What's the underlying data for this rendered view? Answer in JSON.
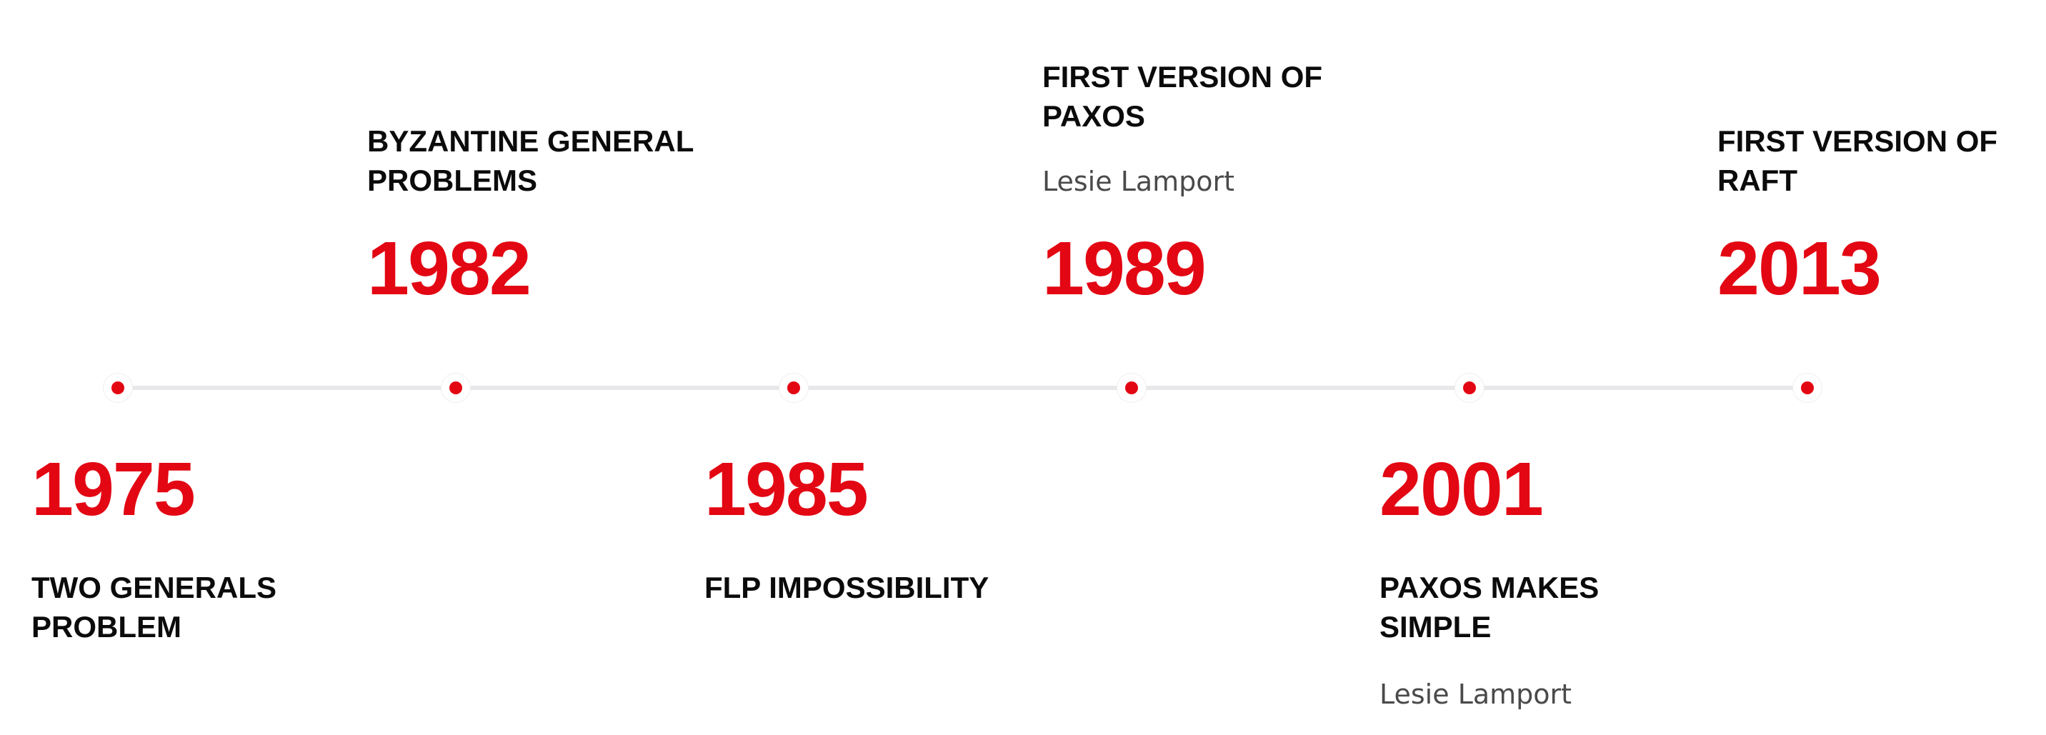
{
  "accent_color": "#e30613",
  "line_color": "#e8e8ea",
  "events": [
    {
      "year": "1975",
      "title_lines": [
        "TWO GENERALS",
        "PROBLEM"
      ],
      "author": ""
    },
    {
      "year": "1982",
      "title_lines": [
        "BYZANTINE GENERAL",
        "PROBLEMS"
      ],
      "author": ""
    },
    {
      "year": "1985",
      "title_lines": [
        "FLP IMPOSSIBILITY"
      ],
      "author": ""
    },
    {
      "year": "1989",
      "title_lines": [
        "FIRST VERSION OF",
        "PAXOS"
      ],
      "author": "Lesie Lamport"
    },
    {
      "year": "2001",
      "title_lines": [
        "PAXOS MAKES",
        "SIMPLE"
      ],
      "author": "Lesie Lamport"
    },
    {
      "year": "2013",
      "title_lines": [
        "FIRST VERSION OF",
        "RAFT"
      ],
      "author": ""
    }
  ]
}
